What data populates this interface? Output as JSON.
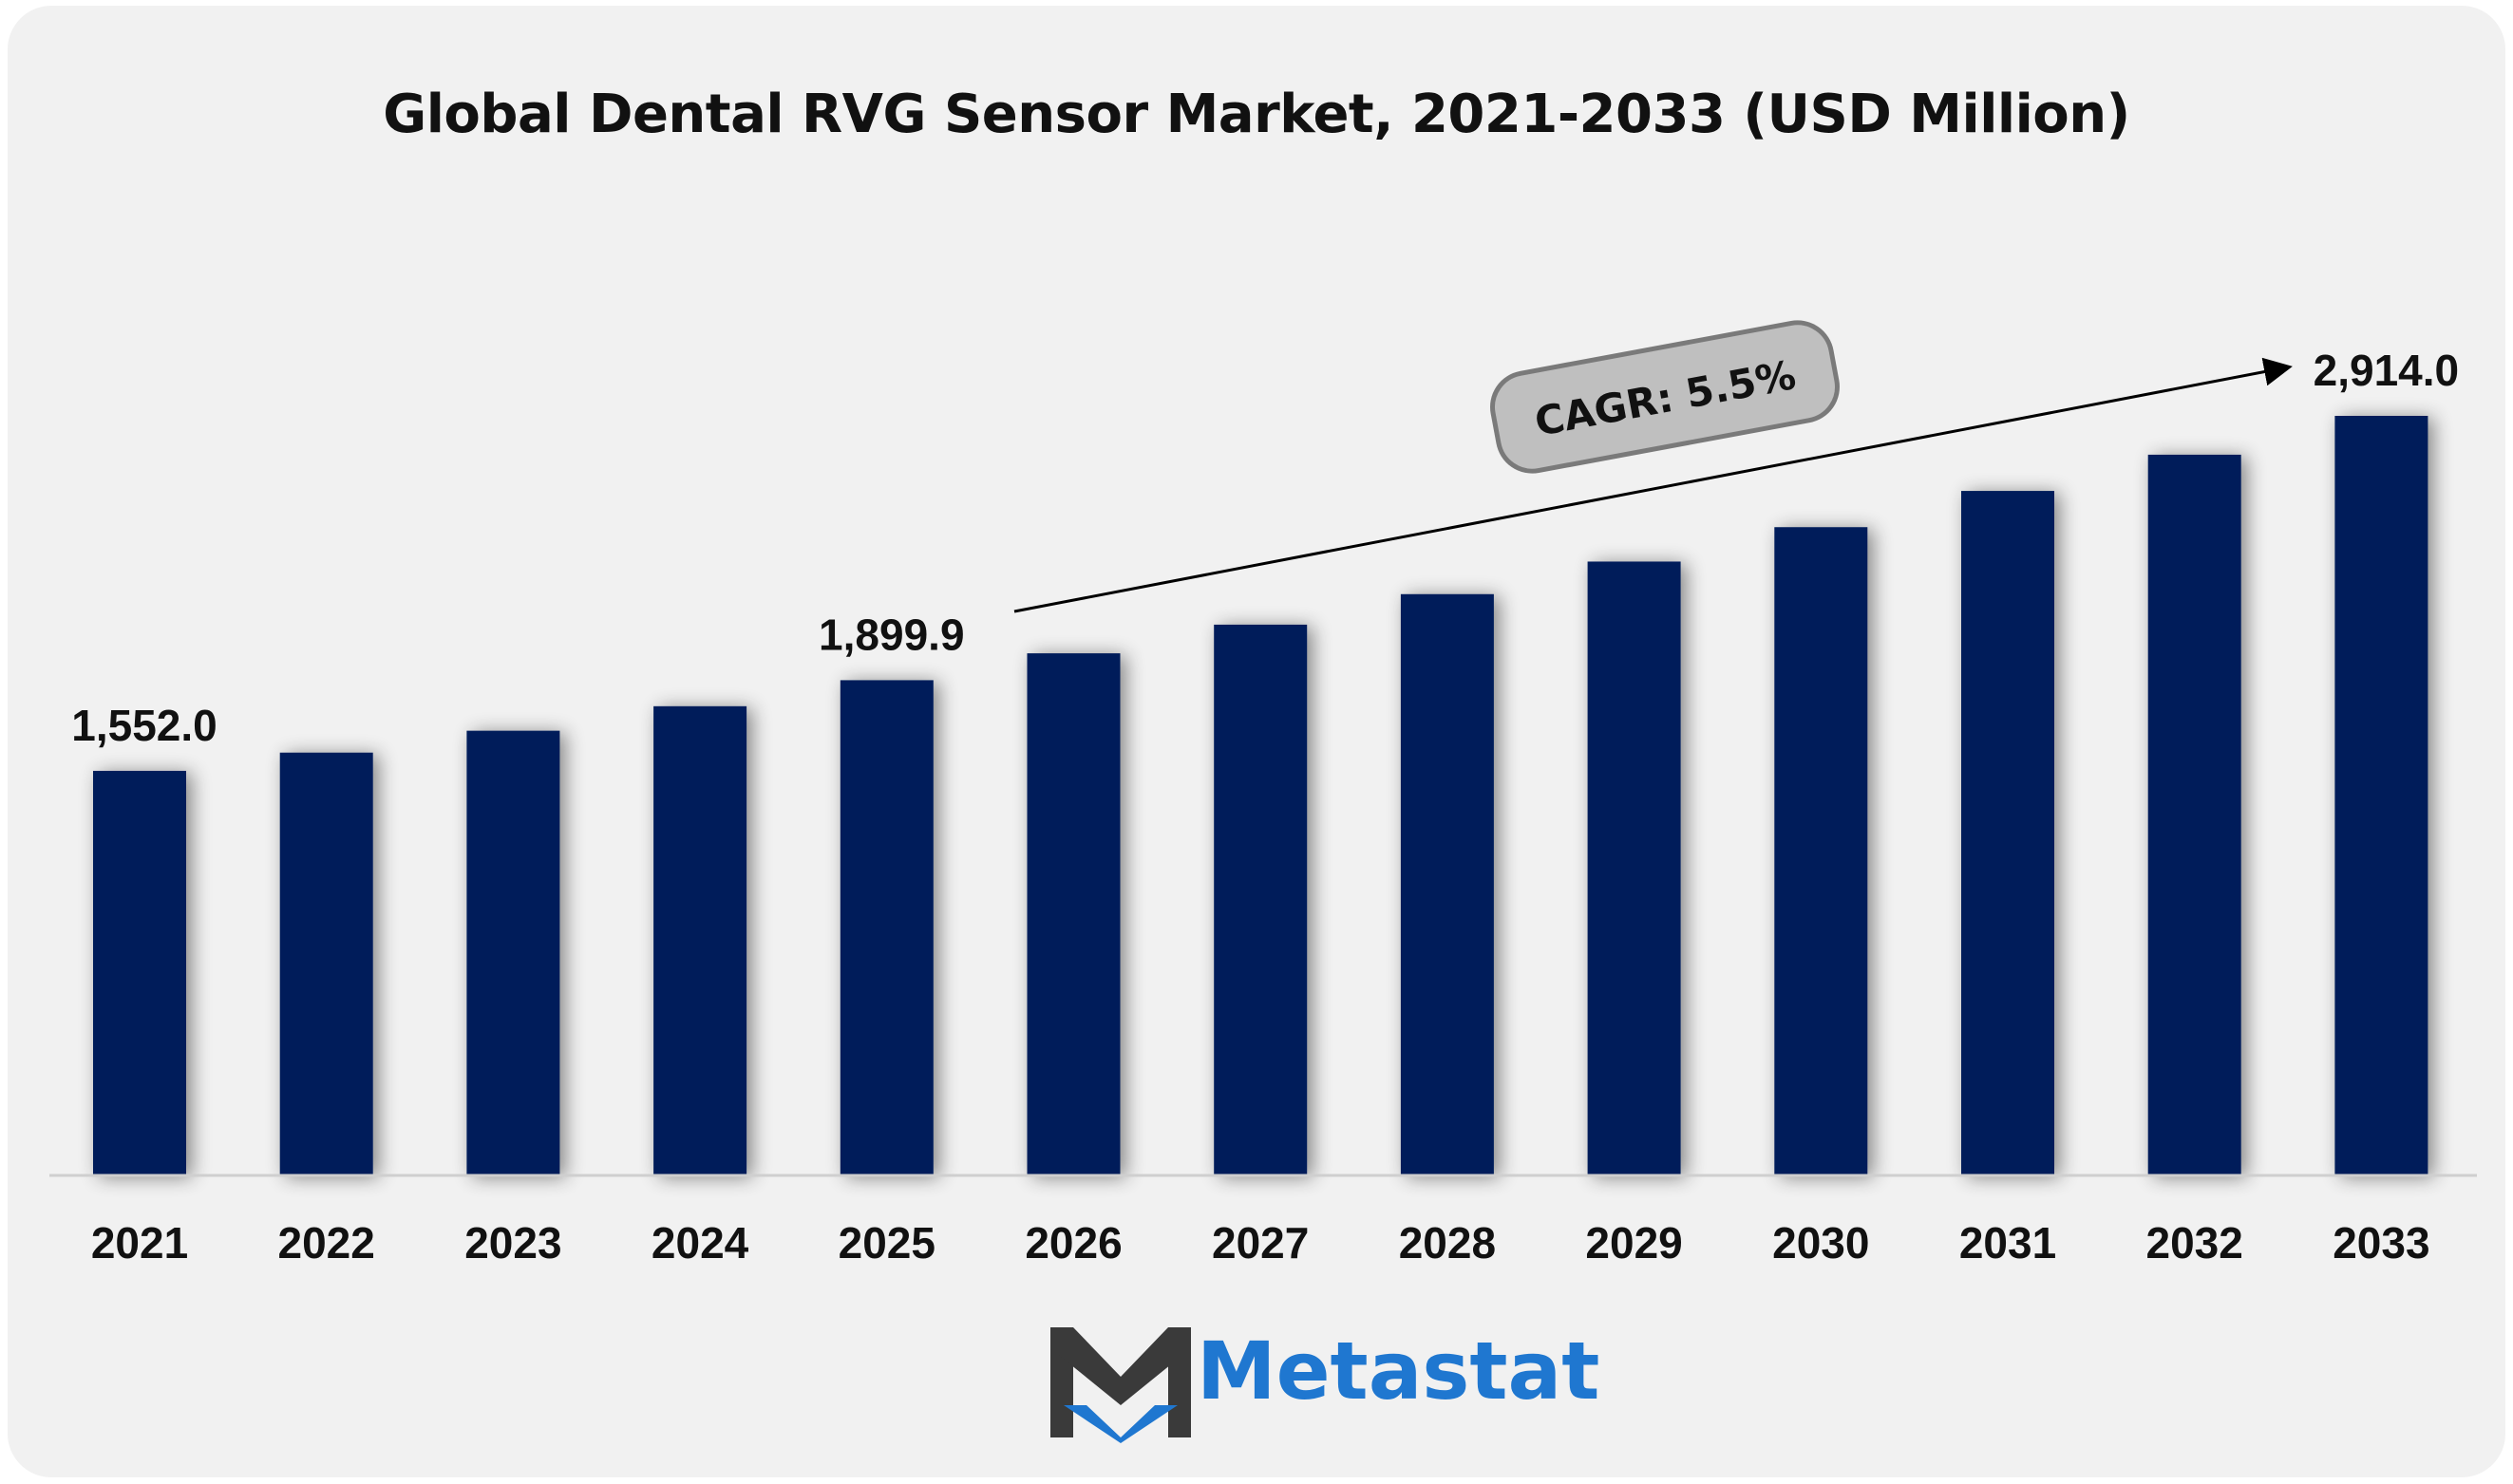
{
  "title": "Global Dental RVG Sensor Market, 2021-2033 (USD Million)",
  "chart_data": {
    "type": "bar",
    "categories": [
      "2021",
      "2022",
      "2023",
      "2024",
      "2025",
      "2026",
      "2027",
      "2028",
      "2029",
      "2030",
      "2031",
      "2032",
      "2033"
    ],
    "values": [
      1552.0,
      1622.0,
      1706.0,
      1800.0,
      1899.9,
      2003.0,
      2113.0,
      2230.0,
      2355.0,
      2487.0,
      2626.0,
      2765.0,
      2914.0
    ],
    "data_labels": [
      {
        "index": 0,
        "text": "1,552.0"
      },
      {
        "index": 4,
        "text": "1,899.9"
      },
      {
        "index": 12,
        "text": "2,914.0"
      }
    ],
    "annotation": "CAGR: 5.5%",
    "bar_color": "#021e5a",
    "ylim": [
      0,
      2914.0
    ]
  },
  "brand": {
    "name": "Metastat",
    "color": "#1f77d0"
  }
}
